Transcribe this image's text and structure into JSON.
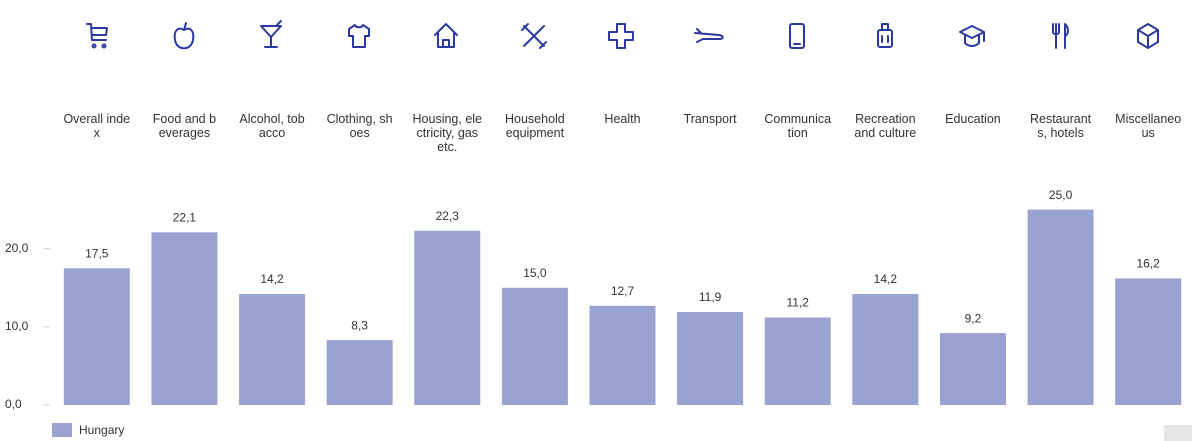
{
  "chart_data": {
    "type": "bar",
    "categories": [
      "Overall index",
      "Food and beverages",
      "Alcohol, tobacco",
      "Clothing, shoes",
      "Housing, electricity, gas etc.",
      "Household equipment",
      "Health",
      "Transport",
      "Communication",
      "Recreation and culture",
      "Education",
      "Restaurants, hotels",
      "Miscellaneous"
    ],
    "series": [
      {
        "name": "Hungary",
        "color": "#9aa2d2",
        "values": [
          17.5,
          22.1,
          14.2,
          8.3,
          22.3,
          15.0,
          12.7,
          11.9,
          11.2,
          14.2,
          9.2,
          25.0,
          16.2
        ],
        "value_labels": [
          "17,5",
          "22,1",
          "14,2",
          "8,3",
          "22,3",
          "15,0",
          "12,7",
          "11,9",
          "11,2",
          "14,2",
          "9,2",
          "25,0",
          "16,2"
        ]
      }
    ],
    "ylim": [
      0,
      27
    ],
    "yticks": [
      {
        "value": 0,
        "label": "0,0"
      },
      {
        "value": 10,
        "label": "10,0"
      },
      {
        "value": 20,
        "label": "20,0"
      }
    ],
    "grid": false
  }
}
